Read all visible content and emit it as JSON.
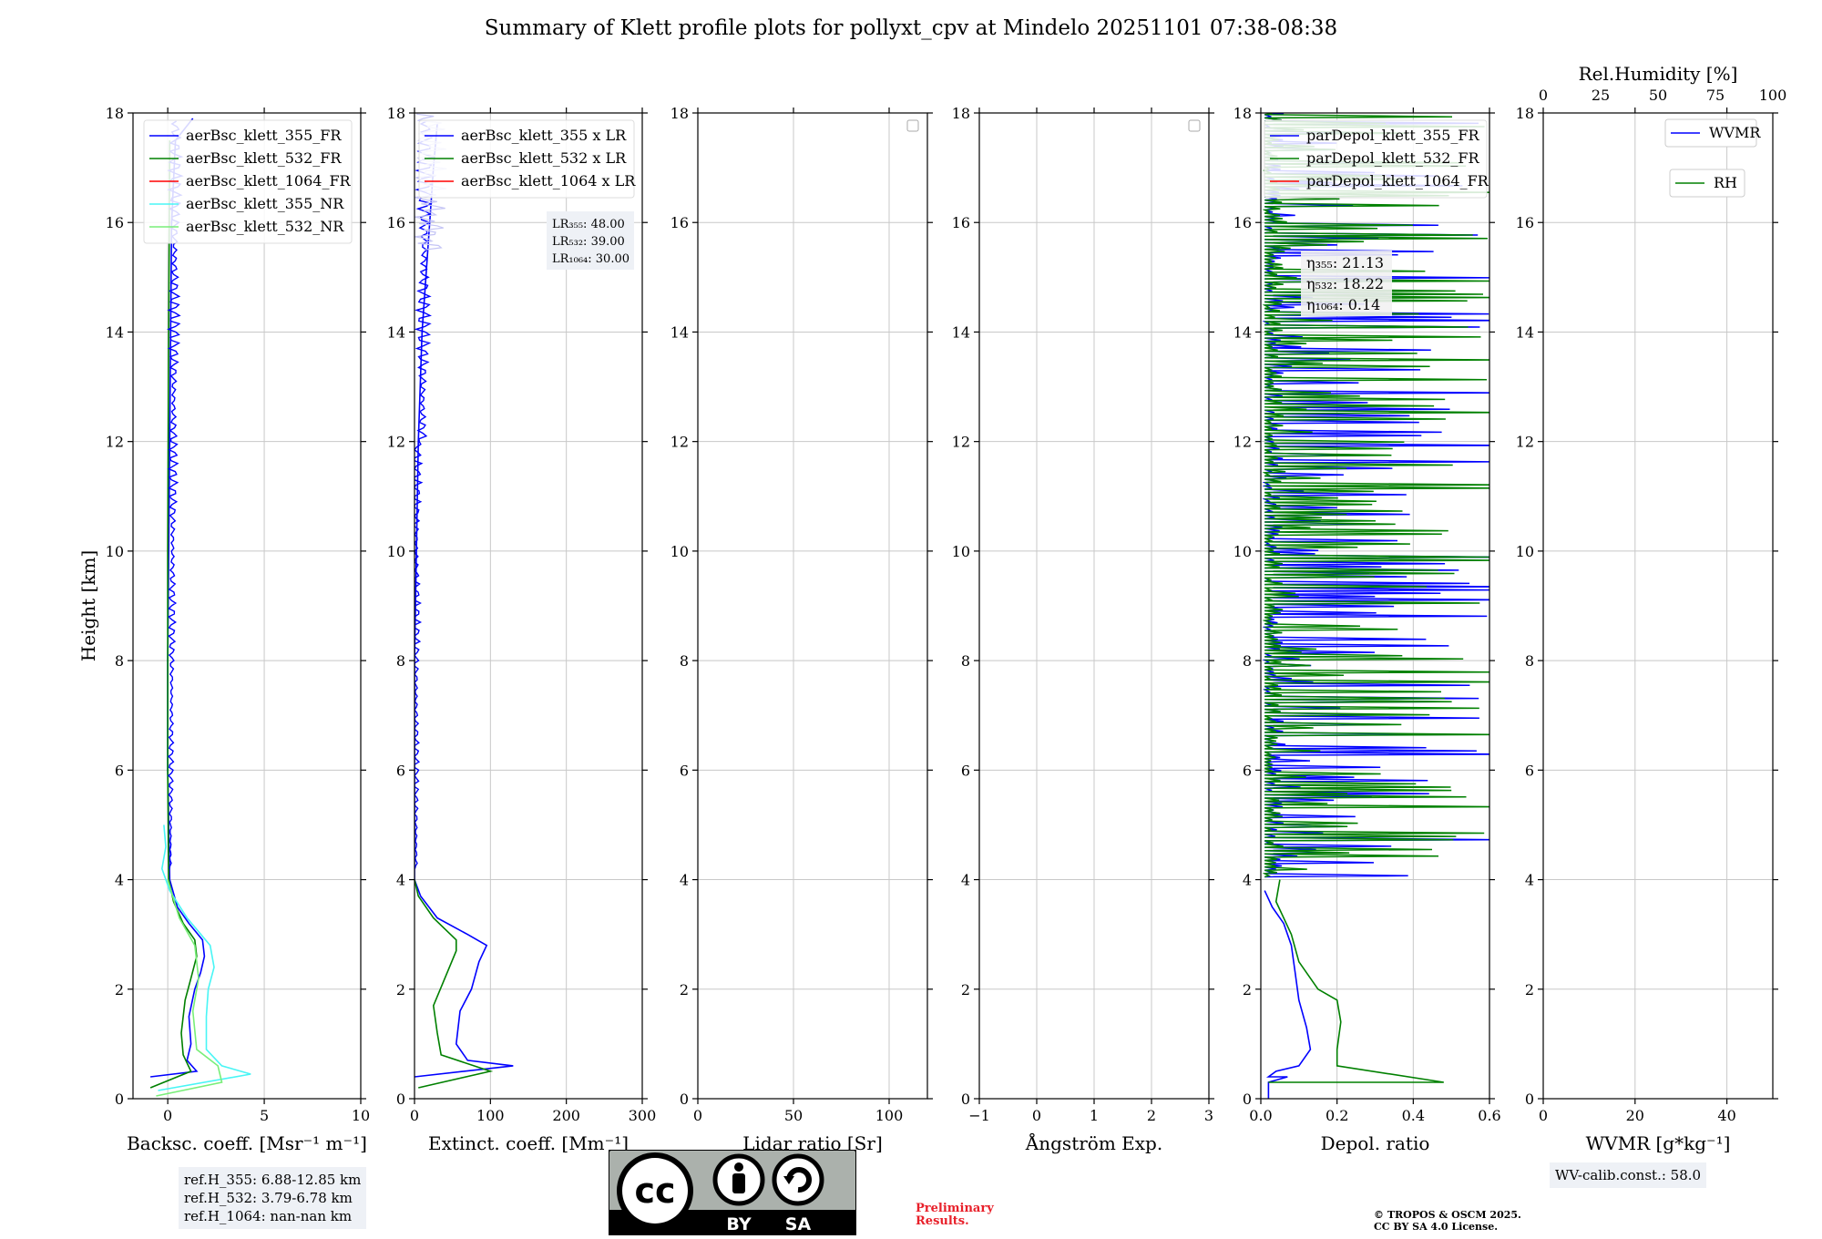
{
  "title": "Summary of Klett profile plots for pollyxt_cpv at Mindelo 20251101 07:38-08:38",
  "colors": {
    "b355": "#0000ff",
    "b532": "#008000",
    "b1064": "#ff0000",
    "c355": "#48f5f5",
    "c532": "#78ee78",
    "grid": "#c8c8c8"
  },
  "chart_data": [
    {
      "type": "line",
      "id": "backscatter",
      "xlabel": "Backsc. coeff. [Msr⁻¹ m⁻¹]",
      "ylabel": "Height [km]",
      "xlim": [
        -1.8,
        10
      ],
      "ylim": [
        0,
        18
      ],
      "xticks": [
        0,
        5,
        10
      ],
      "xticklabels": [
        "0",
        "5",
        "10"
      ],
      "yticks": [
        0,
        2,
        4,
        6,
        8,
        10,
        12,
        14,
        16,
        18
      ],
      "legend": [
        "aerBsc_klett_355_FR",
        "aerBsc_klett_532_FR",
        "aerBsc_klett_1064_FR",
        "aerBsc_klett_355_NR",
        "aerBsc_klett_532_NR"
      ],
      "series": [
        {
          "name": "aerBsc_klett_355_FR",
          "color": "#0000ff",
          "points": [
            [
              -0.9,
              0.4
            ],
            [
              1.5,
              0.5
            ],
            [
              1.0,
              0.7
            ],
            [
              1.2,
              1.0
            ],
            [
              1.1,
              1.5
            ],
            [
              1.4,
              2.0
            ],
            [
              1.7,
              2.3
            ],
            [
              1.9,
              2.6
            ],
            [
              1.8,
              2.9
            ],
            [
              1.1,
              3.2
            ],
            [
              0.5,
              3.5
            ],
            [
              0.1,
              4.0
            ],
            [
              0.0,
              6.0
            ],
            [
              0.0,
              8.0
            ],
            [
              0.05,
              10.0
            ],
            [
              0.1,
              12.0
            ],
            [
              0.15,
              14.0
            ],
            [
              0.2,
              16.0
            ],
            [
              0.4,
              17.5
            ],
            [
              1.3,
              17.9
            ]
          ]
        },
        {
          "name": "aerBsc_klett_532_FR",
          "color": "#008000",
          "points": [
            [
              -0.9,
              0.2
            ],
            [
              1.2,
              0.5
            ],
            [
              0.8,
              0.8
            ],
            [
              0.7,
              1.2
            ],
            [
              0.9,
              1.8
            ],
            [
              1.2,
              2.2
            ],
            [
              1.5,
              2.6
            ],
            [
              1.4,
              2.9
            ],
            [
              0.8,
              3.2
            ],
            [
              0.3,
              3.6
            ],
            [
              0.05,
              4.0
            ],
            [
              0.0,
              6.0
            ],
            [
              0.0,
              10.0
            ],
            [
              0.05,
              14.0
            ],
            [
              0.1,
              17.5
            ]
          ]
        },
        {
          "name": "aerBsc_klett_355_NR",
          "color": "#48f5f5",
          "points": [
            [
              -0.5,
              0.15
            ],
            [
              4.3,
              0.45
            ],
            [
              2.8,
              0.6
            ],
            [
              2.0,
              0.9
            ],
            [
              2.0,
              1.5
            ],
            [
              2.1,
              2.0
            ],
            [
              2.4,
              2.4
            ],
            [
              2.2,
              2.8
            ],
            [
              1.0,
              3.3
            ],
            [
              0.1,
              3.8
            ],
            [
              -0.3,
              4.2
            ],
            [
              -0.1,
              4.6
            ],
            [
              -0.2,
              5.0
            ]
          ]
        },
        {
          "name": "aerBsc_klett_532_NR",
          "color": "#78ee78",
          "points": [
            [
              -0.6,
              0.05
            ],
            [
              2.8,
              0.3
            ],
            [
              2.6,
              0.6
            ],
            [
              1.5,
              0.9
            ],
            [
              1.3,
              1.6
            ],
            [
              1.6,
              2.2
            ],
            [
              1.4,
              2.8
            ],
            [
              0.6,
              3.3
            ],
            [
              0.0,
              4.0
            ]
          ]
        }
      ]
    },
    {
      "type": "line",
      "id": "extinction",
      "xlabel": "Extinct. coeff. [Mm⁻¹]",
      "xlim": [
        0,
        300
      ],
      "ylim": [
        0,
        18
      ],
      "xticks": [
        0,
        100,
        200,
        300
      ],
      "xticklabels": [
        "0",
        "100",
        "200",
        "300"
      ],
      "yticks": [
        0,
        2,
        4,
        6,
        8,
        10,
        12,
        14,
        16,
        18
      ],
      "legend": [
        "aerBsc_klett_355 x LR",
        "aerBsc_klett_532 x LR",
        "aerBsc_klett_1064 x LR"
      ],
      "series": [
        {
          "name": "aerBsc_klett_355 x LR",
          "color": "#0000ff",
          "points": [
            [
              0,
              0.4
            ],
            [
              130,
              0.6
            ],
            [
              70,
              0.7
            ],
            [
              55,
              1.0
            ],
            [
              60,
              1.6
            ],
            [
              75,
              2.0
            ],
            [
              85,
              2.5
            ],
            [
              95,
              2.8
            ],
            [
              70,
              3.0
            ],
            [
              30,
              3.3
            ],
            [
              8,
              3.7
            ],
            [
              0,
              4.0
            ],
            [
              0,
              8.0
            ],
            [
              5,
              12.0
            ],
            [
              10,
              14.0
            ],
            [
              20,
              16.0
            ],
            [
              25,
              17.0
            ],
            [
              30,
              17.8
            ]
          ]
        },
        {
          "name": "aerBsc_klett_532 x LR",
          "color": "#008000",
          "points": [
            [
              5,
              0.2
            ],
            [
              100,
              0.5
            ],
            [
              35,
              0.8
            ],
            [
              30,
              1.2
            ],
            [
              25,
              1.7
            ],
            [
              40,
              2.2
            ],
            [
              55,
              2.7
            ],
            [
              55,
              2.9
            ],
            [
              25,
              3.3
            ],
            [
              5,
              3.7
            ],
            [
              0,
              4.0
            ]
          ]
        }
      ],
      "lr_labels": [
        "LR₃₅₅: 48.00",
        "LR₅₃₂: 39.00",
        "LR₁₀₆₄: 30.00"
      ]
    },
    {
      "type": "line",
      "id": "lidar-ratio",
      "xlabel": "Lidar ratio [Sr]",
      "xlim": [
        0,
        120
      ],
      "ylim": [
        0,
        18
      ],
      "xticks": [
        0,
        50,
        100
      ],
      "xticklabels": [
        "0",
        "50",
        "100"
      ],
      "yticks": [
        0,
        2,
        4,
        6,
        8,
        10,
        12,
        14,
        16,
        18
      ],
      "series": []
    },
    {
      "type": "line",
      "id": "angstrom",
      "xlabel": "Ångström Exp.",
      "xlim": [
        -1,
        3
      ],
      "ylim": [
        0,
        18
      ],
      "xticks": [
        -1,
        0,
        1,
        2,
        3
      ],
      "xticklabels": [
        "−1",
        "0",
        "1",
        "2",
        "3"
      ],
      "yticks": [
        0,
        2,
        4,
        6,
        8,
        10,
        12,
        14,
        16,
        18
      ],
      "series": []
    },
    {
      "type": "line",
      "id": "depol",
      "xlabel": "Depol. ratio",
      "xlim": [
        0,
        0.6
      ],
      "ylim": [
        0,
        18
      ],
      "xticks": [
        0,
        0.2,
        0.4,
        0.6
      ],
      "xticklabels": [
        "0.0",
        "0.2",
        "0.4",
        "0.6"
      ],
      "yticks": [
        0,
        2,
        4,
        6,
        8,
        10,
        12,
        14,
        16,
        18
      ],
      "legend": [
        "parDepol_klett_355_FR",
        "parDepol_klett_532_FR",
        "parDepol_klett_1064_FR"
      ],
      "series": [
        {
          "name": "parDepol_klett_355_FR",
          "color": "#0000ff",
          "points": [
            [
              0.02,
              0.0
            ],
            [
              0.02,
              0.3
            ],
            [
              0.07,
              0.4
            ],
            [
              0.02,
              0.4
            ],
            [
              0.04,
              0.5
            ],
            [
              0.1,
              0.6
            ],
            [
              0.13,
              0.9
            ],
            [
              0.12,
              1.3
            ],
            [
              0.1,
              1.8
            ],
            [
              0.09,
              2.3
            ],
            [
              0.08,
              2.8
            ],
            [
              0.06,
              3.2
            ],
            [
              0.03,
              3.5
            ],
            [
              0.01,
              3.8
            ]
          ]
        },
        {
          "name": "parDepol_klett_532_FR",
          "color": "#008000",
          "points": [
            [
              0.02,
              0.3
            ],
            [
              0.48,
              0.3
            ],
            [
              0.2,
              0.6
            ],
            [
              0.2,
              0.9
            ],
            [
              0.21,
              1.4
            ],
            [
              0.2,
              1.8
            ],
            [
              0.15,
              2.0
            ],
            [
              0.1,
              2.5
            ],
            [
              0.08,
              3.0
            ],
            [
              0.06,
              3.3
            ],
            [
              0.04,
              3.6
            ],
            [
              0.05,
              4.0
            ]
          ]
        }
      ],
      "eta_labels": [
        "η₃₅₅: 21.13",
        "η₅₃₂: 18.22",
        "η₁₀₆₄: 0.14"
      ]
    },
    {
      "type": "line",
      "id": "wvmr",
      "xlabel": "WVMR [g*kg⁻¹]",
      "xlim": [
        0,
        50
      ],
      "ylim": [
        0,
        18
      ],
      "xticks": [
        0,
        20,
        40
      ],
      "xticklabels": [
        "0",
        "20",
        "40"
      ],
      "top_xlabel": "Rel.Humidity [%]",
      "top_xlim": [
        0,
        100
      ],
      "top_xticks": [
        0,
        25,
        50,
        75,
        100
      ],
      "top_xticklabels": [
        "0",
        "25",
        "50",
        "75",
        "100"
      ],
      "yticks": [
        0,
        2,
        4,
        6,
        8,
        10,
        12,
        14,
        16,
        18
      ],
      "legend": [
        "WVMR",
        "RH"
      ],
      "series": []
    }
  ],
  "ref_heights": [
    "ref.H_355: 6.88-12.85 km",
    "ref.H_532: 3.79-6.78 km",
    "ref.H_1064: nan-nan km"
  ],
  "wv_calib": "WV-calib.const.: 58.0",
  "preliminary": [
    "Preliminary",
    "Results."
  ],
  "copyright": [
    "© TROPOS & OSCM 2025.",
    "CC BY SA 4.0 License."
  ],
  "license_badge": {
    "icon": "cc-by-sa-icon",
    "labels": [
      "BY",
      "SA"
    ]
  }
}
